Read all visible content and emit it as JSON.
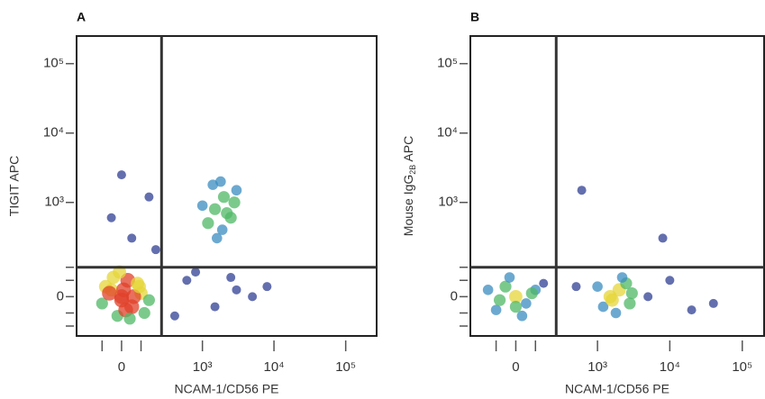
{
  "chart_data": [
    {
      "type": "scatter",
      "panel_label": "A",
      "xlabel": "NCAM-1/CD56 PE",
      "ylabel": "TIGIT APC",
      "xscale": "biexponential",
      "yscale": "biexponential",
      "xlim": [
        -300,
        270000
      ],
      "ylim": [
        -150,
        250000
      ],
      "xticks": [
        0,
        {
          "value": 1000,
          "label": "10³"
        },
        {
          "value": 10000,
          "label": "10⁴"
        },
        {
          "value": 100000,
          "label": "10⁵"
        }
      ],
      "yticks": [
        0,
        {
          "value": 1000,
          "label": "10³"
        },
        {
          "value": 10000,
          "label": "10⁴"
        },
        {
          "value": 100000,
          "label": "10⁵"
        }
      ],
      "xminorticks": [
        -100,
        100
      ],
      "yminorticks": [
        -100,
        -50,
        50,
        100
      ],
      "gates": {
        "x": 250,
        "y": 100
      },
      "colormap": [
        "#2f3f93",
        "#3b8cc0",
        "#4fb866",
        "#e6d63a",
        "#e0402a"
      ],
      "x": [
        0,
        -50,
        50,
        100,
        -100,
        30,
        -20,
        80,
        150,
        -80,
        20,
        60,
        -40,
        120,
        10,
        0,
        40,
        -60,
        90,
        -10,
        1500,
        2000,
        1200,
        2500,
        1800,
        1000,
        3000,
        1600,
        2200,
        1400,
        2800,
        1900,
        600,
        1500,
        3000,
        5000,
        800,
        2500,
        8000,
        400,
        50,
        -50,
        150,
        200,
        0
      ],
      "y": [
        0,
        20,
        -30,
        10,
        -20,
        50,
        -60,
        40,
        -10,
        30,
        -40,
        0,
        60,
        -50,
        20,
        -10,
        -70,
        10,
        30,
        80,
        800,
        1200,
        500,
        600,
        2000,
        900,
        1500,
        300,
        700,
        1800,
        1000,
        400,
        50,
        -30,
        20,
        0,
        80,
        60,
        30,
        -60,
        300,
        600,
        1200,
        200,
        2500
      ]
    },
    {
      "type": "scatter",
      "panel_label": "B",
      "xlabel": "NCAM-1/CD56 PE",
      "ylabel": [
        "Mouse IgG",
        "2B",
        " APC"
      ],
      "xscale": "biexponential",
      "yscale": "biexponential",
      "xlim": [
        -300,
        200000
      ],
      "ylim": [
        -150,
        250000
      ],
      "xticks": [
        0,
        {
          "value": 1000,
          "label": "10³"
        },
        {
          "value": 10000,
          "label": "10⁴"
        },
        {
          "value": 100000,
          "label": "10⁵"
        }
      ],
      "yticks": [
        0,
        {
          "value": 1000,
          "label": "10³"
        },
        {
          "value": 10000,
          "label": "10⁴"
        },
        {
          "value": 100000,
          "label": "10⁵"
        }
      ],
      "xminorticks": [
        -100,
        100
      ],
      "yminorticks": [
        -100,
        -50,
        50,
        100
      ],
      "gates": {
        "x": 250,
        "y": 100
      },
      "colormap": [
        "#2f3f93",
        "#3b8cc0",
        "#4fb866",
        "#e6d63a",
        "#e0402a"
      ],
      "x": [
        0,
        -50,
        50,
        -100,
        100,
        -30,
        30,
        80,
        -80,
        150,
        0,
        -150,
        1500,
        2000,
        1200,
        2500,
        1800,
        3000,
        1600,
        2200,
        1000,
        2800,
        5000,
        10000,
        20000,
        500,
        8000,
        40000,
        600
      ],
      "y": [
        0,
        30,
        -20,
        -40,
        20,
        60,
        -60,
        10,
        -10,
        40,
        -30,
        20,
        0,
        20,
        -30,
        40,
        -50,
        10,
        -10,
        60,
        30,
        -20,
        0,
        50,
        -40,
        30,
        300,
        -20,
        1500
      ]
    }
  ]
}
